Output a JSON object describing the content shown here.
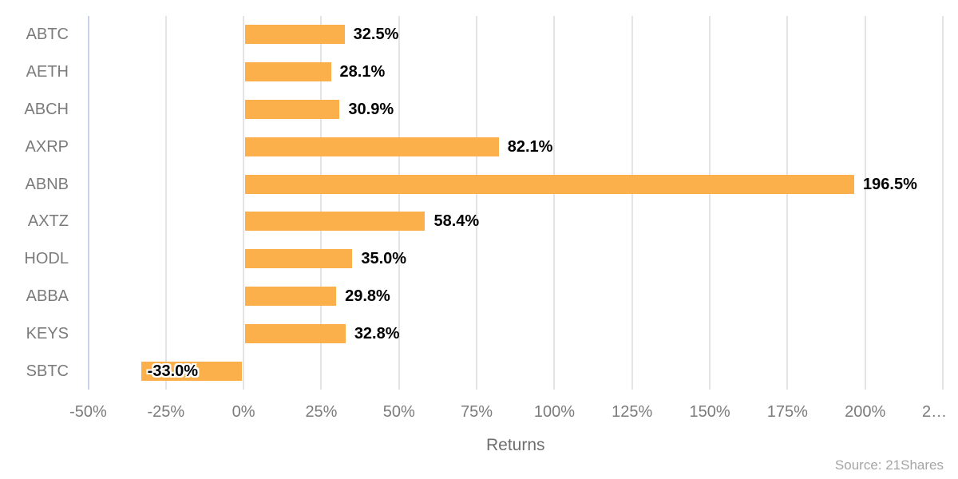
{
  "chart_data": {
    "type": "bar",
    "orientation": "horizontal",
    "categories": [
      "ABTC",
      "AETH",
      "ABCH",
      "AXRP",
      "ABNB",
      "AXTZ",
      "HODL",
      "ABBA",
      "KEYS",
      "SBTC"
    ],
    "values": [
      32.5,
      28.1,
      30.9,
      82.1,
      196.5,
      58.4,
      35.0,
      29.8,
      32.8,
      -33.0
    ],
    "value_labels": [
      "32.5%",
      "28.1%",
      "30.9%",
      "82.1%",
      "196.5%",
      "58.4%",
      "35.0%",
      "29.8%",
      "32.8%",
      "-33.0%"
    ],
    "xlabel": "Returns",
    "xlim": [
      -50,
      225
    ],
    "x_ticks": [
      {
        "value": -50,
        "label": "-50%"
      },
      {
        "value": -25,
        "label": "-25%"
      },
      {
        "value": 0,
        "label": "0%"
      },
      {
        "value": 25,
        "label": "25%"
      },
      {
        "value": 50,
        "label": "50%"
      },
      {
        "value": 75,
        "label": "75%"
      },
      {
        "value": 100,
        "label": "100%"
      },
      {
        "value": 125,
        "label": "125%"
      },
      {
        "value": 150,
        "label": "150%"
      },
      {
        "value": 175,
        "label": "175%"
      },
      {
        "value": 200,
        "label": "200%"
      },
      {
        "value": 225,
        "label": "2…"
      }
    ],
    "grid": true,
    "legend": "none",
    "source_note": "Source: 21Shares",
    "colors": {
      "bar": "#FBB04C",
      "gridline": "#E4E4E6",
      "axis_line": "#C9D2E8",
      "category_text": "#7B7B7B",
      "tick_text": "#7B7B7B",
      "value_text": "#000000",
      "xlabel_text": "#6E6E6E",
      "source_text": "#A5A5A5"
    }
  }
}
